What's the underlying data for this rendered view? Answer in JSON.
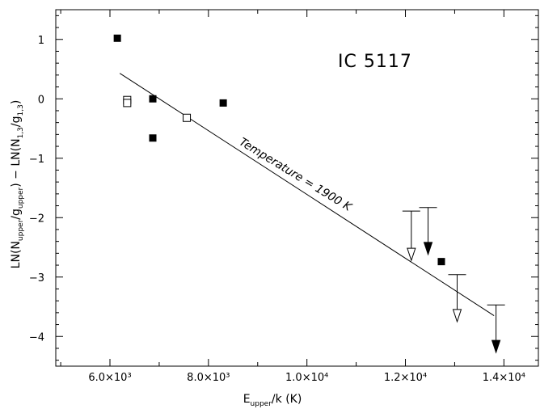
{
  "chart_data": {
    "type": "scatter",
    "title": "",
    "annotation": "IC 5117",
    "fit_label": "Temperature = 1900 K",
    "xlabel": {
      "main": "E",
      "sub": "upper",
      "rest": "/k (K)"
    },
    "ylabel": {
      "p1": "LN(N",
      "s1": "upper",
      "p2": "/g",
      "s2": "upper",
      "p3": ")  −  LN(N",
      "s3": "1,3",
      "p4": "/g",
      "s4": "1,3",
      "p5": ")"
    },
    "xlim": [
      4900,
      14700
    ],
    "ylim": [
      -4.5,
      1.5
    ],
    "x_ticks": [
      {
        "value": 6000,
        "label": "6.0×10³"
      },
      {
        "value": 8000,
        "label": "8.0×10³"
      },
      {
        "value": 10000,
        "label": "1.0×10⁴"
      },
      {
        "value": 12000,
        "label": "1.2×10⁴"
      },
      {
        "value": 14000,
        "label": "1.4×10⁴"
      }
    ],
    "y_ticks": [
      {
        "value": 1,
        "label": "1"
      },
      {
        "value": 0,
        "label": "0"
      },
      {
        "value": -1,
        "label": "−1"
      },
      {
        "value": -2,
        "label": "−2"
      },
      {
        "value": -3,
        "label": "−3"
      },
      {
        "value": -4,
        "label": "−4"
      }
    ],
    "fit_line": {
      "x": [
        6200,
        13800
      ],
      "y": [
        0.43,
        -3.65
      ]
    },
    "series": [
      {
        "marker": "filled-square",
        "points": [
          {
            "x": 6150,
            "y": 1.02
          },
          {
            "x": 6870,
            "y": 0.0
          },
          {
            "x": 6870,
            "y": -0.66
          },
          {
            "x": 8300,
            "y": -0.07
          },
          {
            "x": 12730,
            "y": -2.74
          }
        ]
      },
      {
        "marker": "open-square",
        "points": [
          {
            "x": 6350,
            "y": -0.02
          },
          {
            "x": 6350,
            "y": -0.07
          },
          {
            "x": 7560,
            "y": -0.32
          }
        ]
      },
      {
        "marker": "upper-limit-open",
        "points": [
          {
            "x": 12120,
            "y": -1.89,
            "y_end": -2.72
          },
          {
            "x": 13050,
            "y": -2.96,
            "y_end": -3.75
          }
        ]
      },
      {
        "marker": "upper-limit-filled",
        "points": [
          {
            "x": 12460,
            "y": -1.83,
            "y_end": -2.62
          },
          {
            "x": 13840,
            "y": -3.47,
            "y_end": -4.27
          }
        ]
      }
    ],
    "colors": {
      "ink": "#000000",
      "background": "#ffffff"
    }
  }
}
